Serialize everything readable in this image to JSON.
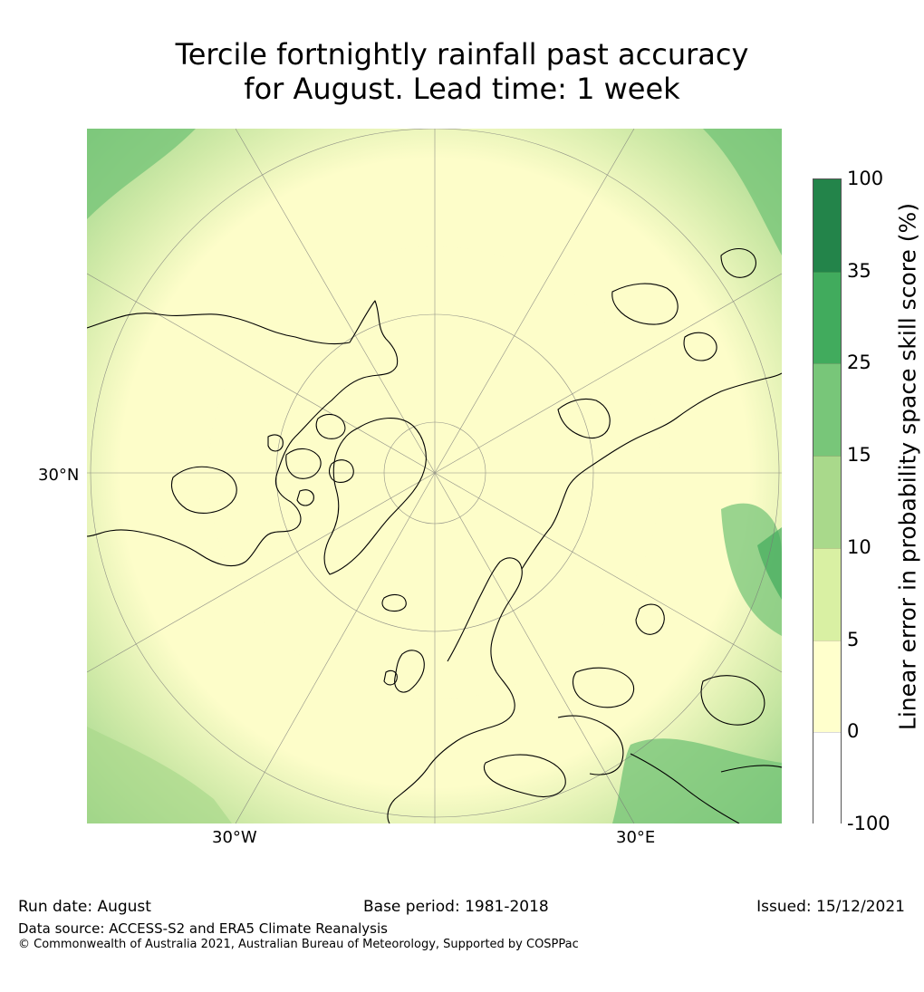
{
  "title": {
    "line1": "Tercile fortnightly rainfall past accuracy",
    "line2": "for August. Lead time: 1 week"
  },
  "map": {
    "projection": "north-polar-stereographic",
    "graticule_labels": {
      "lat": "30°N",
      "lon_west": "30°W",
      "lon_east": "30°E"
    },
    "colors": {
      "coastline": "#000000",
      "graticule": "#777777"
    }
  },
  "colorbar": {
    "label": "Linear error in probability space skill score (%)",
    "ticks": [
      "100",
      "35",
      "25",
      "15",
      "10",
      "5",
      "0",
      "-100"
    ],
    "bins": [
      {
        "range": "35-100",
        "color": "#23844a"
      },
      {
        "range": "25-35",
        "color": "#41ab5d"
      },
      {
        "range": "15-25",
        "color": "#78c679"
      },
      {
        "range": "10-15",
        "color": "#a9d98b"
      },
      {
        "range": "5-10",
        "color": "#d9f0a3"
      },
      {
        "range": "0-5",
        "color": "#ffffcc"
      },
      {
        "range": "-100-0",
        "color": "#ffffff"
      }
    ]
  },
  "footer": {
    "run_date": "Run date: August",
    "base_period": "Base period: 1981-2018",
    "issued": "Issued: 15/12/2021",
    "data_source": "Data source: ACCESS-S2 and ERA5 Climate Reanalysis",
    "copyright": "© Commonwealth of Australia 2021, Australian Bureau of Meteorology, Supported by COSPPac"
  }
}
